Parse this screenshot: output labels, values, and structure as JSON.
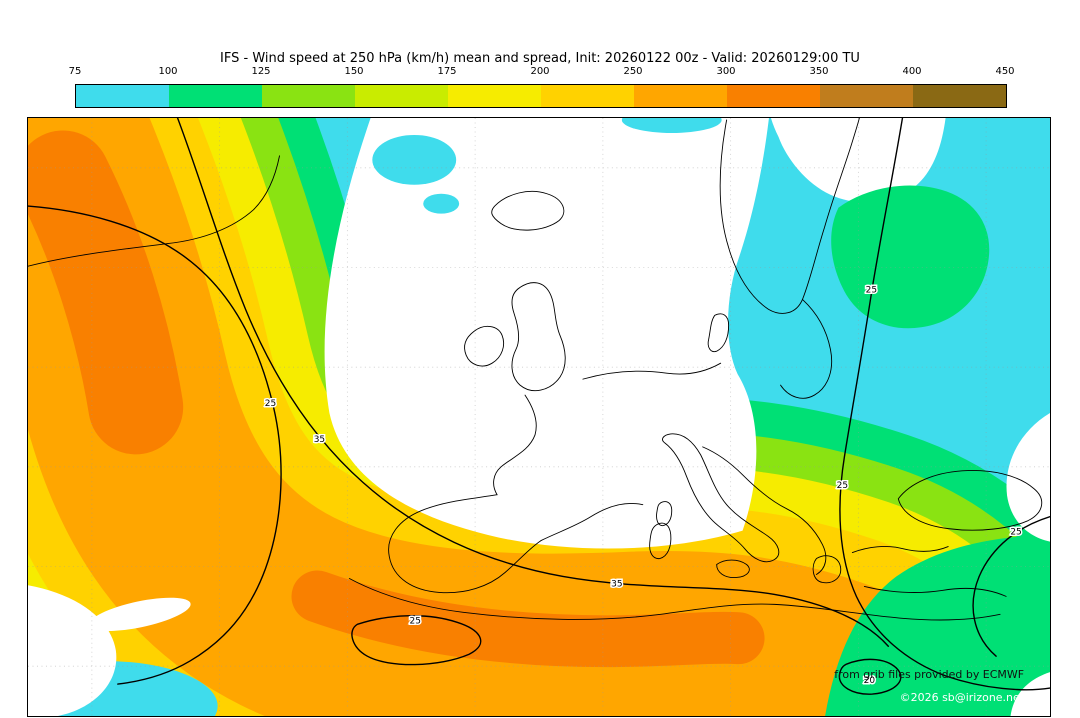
{
  "title": "IFS - Wind speed at 250 hPa (km/h) mean and spread, Init: 20260122 00z - Valid: 20260129:00 TU",
  "colorbar": {
    "ticks": [
      "75",
      "100",
      "125",
      "150",
      "175",
      "200",
      "250",
      "300",
      "350",
      "400",
      "450"
    ],
    "colors": [
      "#3fdcec",
      "#00e075",
      "#8ae312",
      "#c9ec00",
      "#f6ec00",
      "#ffd200",
      "#ffa600",
      "#f98000",
      "#c07d1d",
      "#8a6914"
    ]
  },
  "palette": {
    "below_min": "#ffffff",
    "cyan": "#3fdcec",
    "green": "#00e075",
    "yellow_green": "#8ae312",
    "yellow": "#f6ec00",
    "gold": "#ffd200",
    "orange": "#ffa600",
    "deep_orange": "#f98000",
    "coastline": "#000000",
    "contour": "#000000"
  },
  "map": {
    "contour_labels": [
      "25",
      "35",
      "35",
      "25",
      "25",
      "25",
      "25",
      "20"
    ],
    "credits": {
      "line1": "from grib files provided by ECMWF",
      "line2": "©2026 sb@irizone.net"
    }
  }
}
